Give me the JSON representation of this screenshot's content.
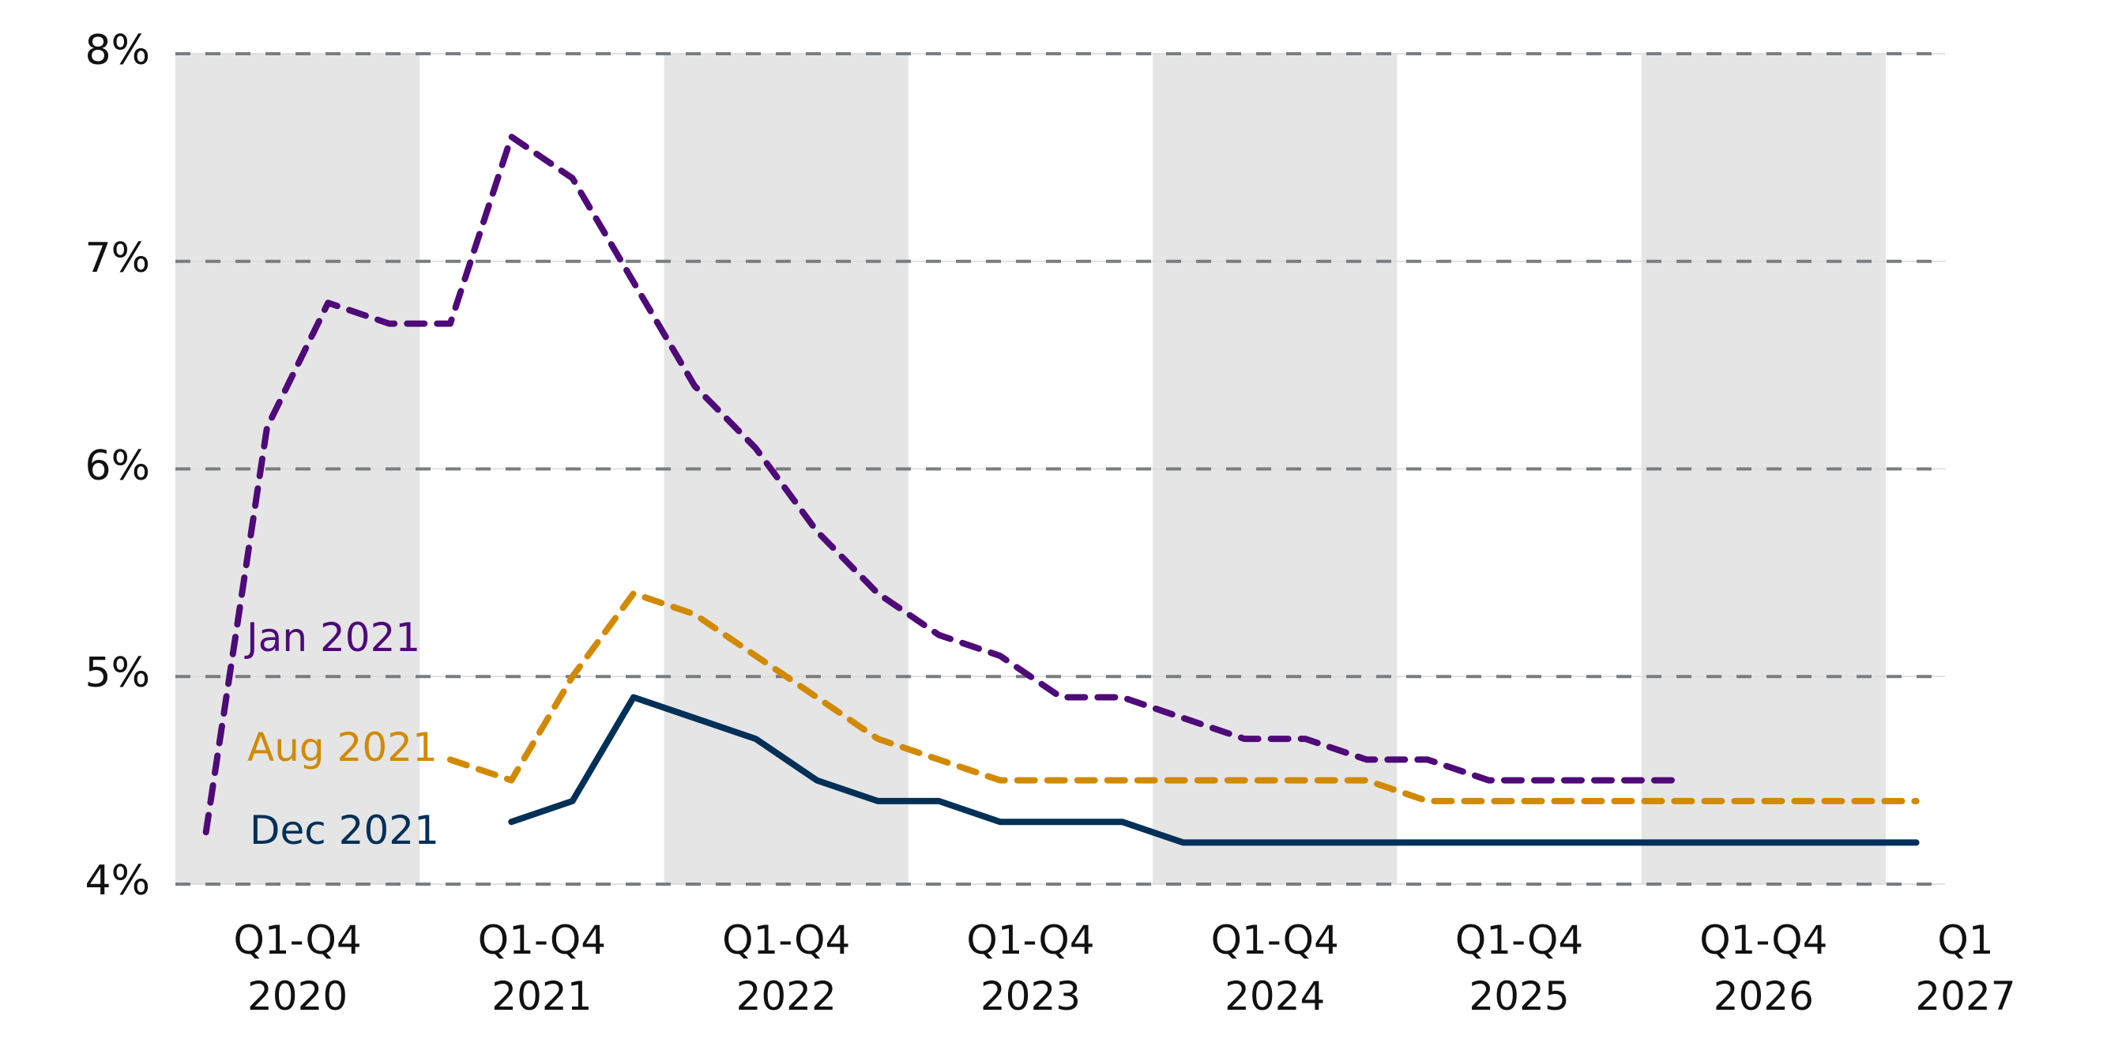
{
  "chart_data": {
    "type": "line",
    "title": "",
    "xlabel": "",
    "ylabel": "",
    "ylim": [
      4,
      8
    ],
    "yticks": [
      "4%",
      "5%",
      "6%",
      "7%",
      "8%"
    ],
    "ytick_values": [
      4,
      5,
      6,
      7,
      8
    ],
    "grid": true,
    "grid_style": "dashed horizontal",
    "alternating_year_shading": true,
    "x_categories_quarterly": [
      "2020Q1",
      "2020Q2",
      "2020Q3",
      "2020Q4",
      "2021Q1",
      "2021Q2",
      "2021Q3",
      "2021Q4",
      "2022Q1",
      "2022Q2",
      "2022Q3",
      "2022Q4",
      "2023Q1",
      "2023Q2",
      "2023Q3",
      "2023Q4",
      "2024Q1",
      "2024Q2",
      "2024Q3",
      "2024Q4",
      "2025Q1",
      "2025Q2",
      "2025Q3",
      "2025Q4",
      "2026Q1",
      "2026Q2",
      "2026Q3",
      "2026Q4",
      "2027Q1"
    ],
    "xtick_labels": [
      {
        "line1": "Q1-Q4",
        "line2": "2020"
      },
      {
        "line1": "Q1-Q4",
        "line2": "2021"
      },
      {
        "line1": "Q1-Q4",
        "line2": "2022"
      },
      {
        "line1": "Q1-Q4",
        "line2": "2023"
      },
      {
        "line1": "Q1-Q4",
        "line2": "2024"
      },
      {
        "line1": "Q1-Q4",
        "line2": "2025"
      },
      {
        "line1": "Q1-Q4",
        "line2": "2026"
      },
      {
        "line1": "Q1",
        "line2": "2027"
      }
    ],
    "legend_position": "inline-left",
    "series": [
      {
        "name": "Jan 2021",
        "color": "#4e0a78",
        "style": "dashed",
        "start": "2020Q1",
        "values": [
          4.25,
          6.2,
          6.8,
          6.7,
          6.7,
          7.6,
          7.4,
          6.9,
          6.4,
          6.1,
          5.7,
          5.4,
          5.2,
          5.1,
          4.9,
          4.9,
          4.8,
          4.7,
          4.7,
          4.6,
          4.6,
          4.5,
          4.5,
          4.5,
          4.5
        ]
      },
      {
        "name": "Aug 2021",
        "color": "#d18a00",
        "style": "dashed",
        "start": "2021Q1",
        "values": [
          4.6,
          4.5,
          5.0,
          5.4,
          5.3,
          5.1,
          4.9,
          4.7,
          4.6,
          4.5,
          4.5,
          4.5,
          4.5,
          4.5,
          4.5,
          4.5,
          4.4,
          4.4,
          4.4,
          4.4,
          4.4,
          4.4,
          4.4,
          4.4,
          4.4
        ]
      },
      {
        "name": "Dec 2021",
        "color": "#003057",
        "style": "solid",
        "start": "2021Q2",
        "values": [
          4.3,
          4.4,
          4.9,
          4.8,
          4.7,
          4.5,
          4.4,
          4.4,
          4.3,
          4.3,
          4.3,
          4.2,
          4.2,
          4.2,
          4.2,
          4.2,
          4.2,
          4.2,
          4.2,
          4.2,
          4.2,
          4.2,
          4.2,
          4.2
        ]
      }
    ]
  },
  "colors": {
    "band": "#e5e5e5",
    "grid": "#797d80",
    "text": "#111111"
  }
}
